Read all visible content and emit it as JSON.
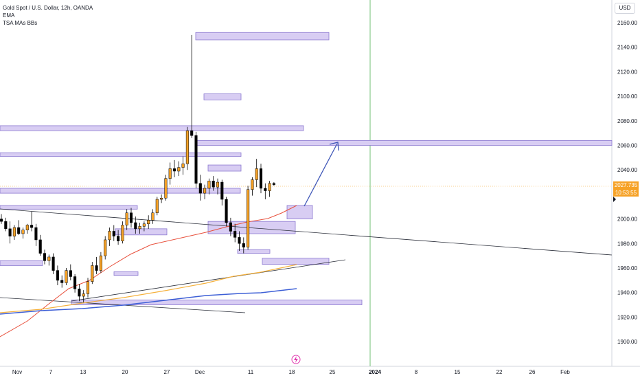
{
  "header": {
    "symbol_line": "Gold Spot / U.S. Dollar, 12h, OANDA",
    "indicator_1": "EMA",
    "indicator_2": "TSA MAs BBs"
  },
  "currency_button": "USD",
  "last_price": {
    "value": "2027.735",
    "countdown": "10:53:55"
  },
  "chart_data": {
    "type": "candlestick",
    "y_axis": {
      "ticks": [
        2160,
        2140,
        2120,
        2100,
        2080,
        2060,
        2040,
        2020,
        2000,
        1980,
        1960,
        1940,
        1920,
        1900
      ],
      "range": [
        1883,
        2178
      ]
    },
    "x_axis": {
      "ticks": [
        "Nov",
        "7",
        "13",
        "20",
        "27",
        "Dec",
        "11",
        "18",
        "25",
        "2024",
        "8",
        "15",
        "22",
        "26",
        "Feb"
      ]
    },
    "candles": [
      [
        2000,
        2004,
        1996,
        1998
      ],
      [
        1998,
        2001,
        1990,
        1992
      ],
      [
        1992,
        1998,
        1980,
        1986
      ],
      [
        1986,
        1995,
        1983,
        1993
      ],
      [
        1993,
        1999,
        1987,
        1988
      ],
      [
        1988,
        1993,
        1984,
        1991
      ],
      [
        1991,
        1996,
        1988,
        1995
      ],
      [
        1995,
        2006,
        1990,
        1993
      ],
      [
        1993,
        1996,
        1978,
        1983
      ],
      [
        1983,
        1987,
        1970,
        1972
      ],
      [
        1972,
        1975,
        1963,
        1966
      ],
      [
        1966,
        1971,
        1962,
        1969
      ],
      [
        1969,
        1972,
        1955,
        1958
      ],
      [
        1958,
        1962,
        1946,
        1950
      ],
      [
        1950,
        1954,
        1944,
        1948
      ],
      [
        1948,
        1960,
        1946,
        1958
      ],
      [
        1958,
        1963,
        1950,
        1953
      ],
      [
        1953,
        1955,
        1940,
        1943
      ],
      [
        1943,
        1947,
        1933,
        1937
      ],
      [
        1937,
        1942,
        1932,
        1939
      ],
      [
        1939,
        1952,
        1936,
        1949
      ],
      [
        1949,
        1965,
        1947,
        1962
      ],
      [
        1962,
        1969,
        1955,
        1958
      ],
      [
        1958,
        1973,
        1956,
        1970
      ],
      [
        1970,
        1986,
        1967,
        1983
      ],
      [
        1983,
        1993,
        1978,
        1990
      ],
      [
        1990,
        1995,
        1982,
        1986
      ],
      [
        1986,
        1991,
        1979,
        1982
      ],
      [
        1982,
        1998,
        1980,
        1995
      ],
      [
        1995,
        2008,
        1991,
        2005
      ],
      [
        2005,
        2009,
        1993,
        1997
      ],
      [
        1997,
        2002,
        1988,
        1992
      ],
      [
        1992,
        1997,
        1988,
        1994
      ],
      [
        1994,
        1998,
        1990,
        1996
      ],
      [
        1996,
        2003,
        1992,
        1999
      ],
      [
        1999,
        2008,
        1996,
        2005
      ],
      [
        2005,
        2018,
        2003,
        2016
      ],
      [
        2016,
        2020,
        2013,
        2017
      ],
      [
        2017,
        2036,
        2015,
        2033
      ],
      [
        2033,
        2046,
        2028,
        2041
      ],
      [
        2041,
        2048,
        2034,
        2039
      ],
      [
        2039,
        2047,
        2035,
        2042
      ],
      [
        2042,
        2051,
        2036,
        2045
      ],
      [
        2045,
        2075,
        2040,
        2072
      ],
      [
        2072,
        2150,
        2066,
        2068
      ],
      [
        2068,
        2071,
        2025,
        2029
      ],
      [
        2029,
        2036,
        2015,
        2021
      ],
      [
        2021,
        2028,
        2016,
        2025
      ],
      [
        2025,
        2033,
        2020,
        2031
      ],
      [
        2031,
        2035,
        2023,
        2026
      ],
      [
        2026,
        2033,
        2020,
        2030
      ],
      [
        2030,
        2032,
        2011,
        2016
      ],
      [
        2016,
        2018,
        1994,
        1997
      ],
      [
        1997,
        2001,
        1986,
        1990
      ],
      [
        1990,
        1996,
        1981,
        1985
      ],
      [
        1985,
        1990,
        1974,
        1980
      ],
      [
        1980,
        1985,
        1972,
        1977
      ],
      [
        1977,
        2027,
        1975,
        2024
      ],
      [
        2024,
        2034,
        2019,
        2032
      ],
      [
        2032,
        2049,
        2026,
        2041
      ],
      [
        2041,
        2045,
        2021,
        2025
      ],
      [
        2025,
        2029,
        2016,
        2023
      ],
      [
        2023,
        2031,
        2018,
        2029
      ],
      [
        2029,
        2030,
        2027,
        2028
      ]
    ],
    "zones": [
      {
        "y": [
          2146,
          2152
        ],
        "label": ""
      },
      {
        "y": [
          2097,
          2102
        ],
        "label": ""
      },
      {
        "y": [
          2072,
          2076
        ],
        "label": ""
      },
      {
        "y": [
          2060,
          2064
        ],
        "label": ""
      },
      {
        "y": [
          2051,
          2054
        ],
        "label": ""
      },
      {
        "y": [
          2039,
          2044
        ],
        "label": ""
      },
      {
        "y": [
          2021,
          2025
        ],
        "label": ""
      },
      {
        "y": [
          2008,
          2011
        ],
        "label": ""
      },
      {
        "y": [
          2000,
          2011
        ],
        "label": ""
      },
      {
        "y": [
          1988,
          1998
        ],
        "label": ""
      },
      {
        "y": [
          1987,
          1992
        ],
        "label": ""
      },
      {
        "y": [
          1972,
          1975
        ],
        "label": ""
      },
      {
        "y": [
          1963,
          1968
        ],
        "label": ""
      },
      {
        "y": [
          1962,
          1966
        ],
        "label": ""
      },
      {
        "y": [
          1954,
          1957
        ],
        "label": ""
      },
      {
        "y": [
          1930,
          1934
        ],
        "label": ""
      }
    ],
    "grid": false,
    "legend": "top-left"
  },
  "colors": {
    "bull_candle": "#f6a227",
    "bear_candle": "#000000",
    "zone_fill": "#d8cdf3",
    "zone_stroke": "#8b78d0",
    "ema_fast": "#e8503c",
    "ema_mid": "#f5b13c",
    "ema_slow": "#3d5fd6",
    "projection_arrow": "#3f57b8",
    "vertical_marker": "#4caf50"
  }
}
